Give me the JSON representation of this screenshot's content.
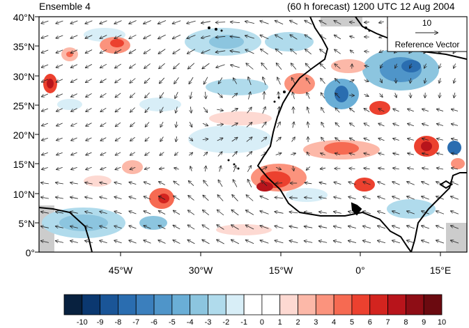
{
  "header": {
    "panel_title": "Ensemble 4",
    "forecast_title": "(60 h forecast) 1200 UTC 12 Aug 2004"
  },
  "axes": {
    "lat_labels": [
      "40°N",
      "35°N",
      "30°N",
      "25°N",
      "20°N",
      "15°N",
      "10°N",
      "5°N",
      "0°"
    ],
    "lon_labels": [
      "45°W",
      "30°W",
      "15°W",
      "0°",
      "15°E"
    ]
  },
  "reference_vector": {
    "magnitude": "10",
    "label": "Reference Vector"
  },
  "colorbar": {
    "labels": [
      "-10",
      "-9",
      "-8",
      "-7",
      "-6",
      "-5",
      "-4",
      "-3",
      "-2",
      "-1",
      "0",
      "1",
      "2",
      "3",
      "4",
      "5",
      "6",
      "7",
      "8",
      "9",
      "10"
    ],
    "colors": [
      "#08213f",
      "#0b3870",
      "#1a5597",
      "#2a6db0",
      "#3b7fbd",
      "#4f95c9",
      "#6aaed6",
      "#8cc5df",
      "#b0dbec",
      "#d8eef7",
      "#ffffff",
      "#ffffff",
      "#fdd9d2",
      "#fcb8a8",
      "#fb937d",
      "#f66a52",
      "#ec412f",
      "#d3241f",
      "#b8141b",
      "#8e0d15",
      "#6b0a10"
    ]
  },
  "colors": {
    "land_mask": "#cccccc",
    "coastline": "#000000"
  },
  "map_data": {
    "projection": "cylindrical equidistant",
    "lat_range": [
      0,
      40
    ],
    "lon_range": [
      -57,
      19
    ],
    "field": "shaded anomaly with wind vectors"
  }
}
